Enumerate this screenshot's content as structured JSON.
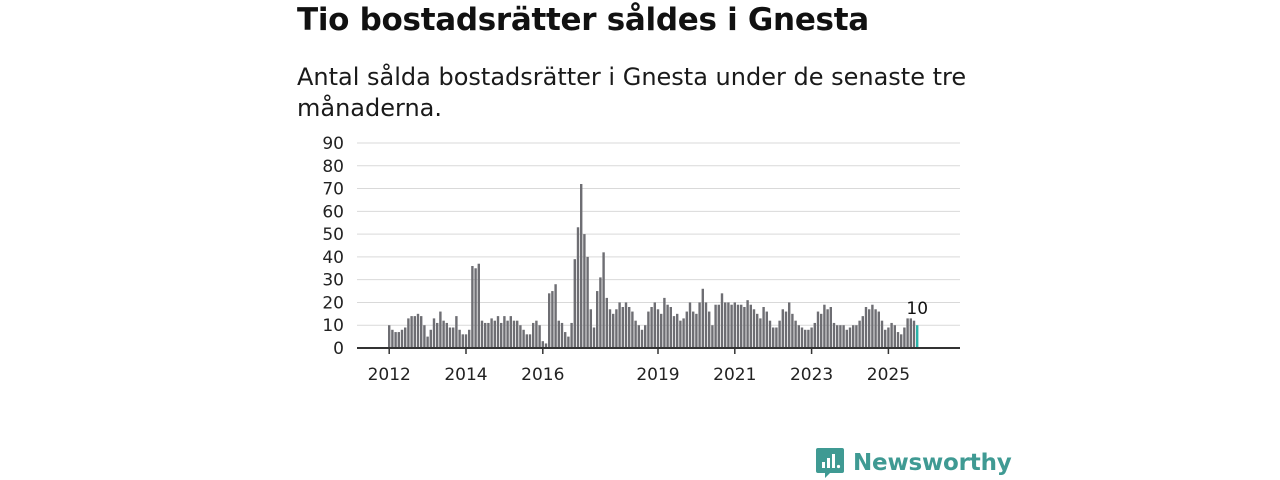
{
  "title": "Tio bostadsrätter såldes i Gnesta",
  "subtitle": "Antal sålda bostadsrätter i Gnesta under de senaste tre månaderna.",
  "logo": {
    "text": "Newsworthy",
    "color": "#3f9a93"
  },
  "chart_data": {
    "type": "bar",
    "title": "Tio bostadsrätter såldes i Gnesta",
    "ylabel": "",
    "xlabel": "",
    "ylim": [
      0,
      90
    ],
    "yticks": [
      0,
      10,
      20,
      30,
      40,
      50,
      60,
      70,
      80,
      90
    ],
    "x_tick_labels": [
      {
        "label": "2012",
        "index": 0
      },
      {
        "label": "2014",
        "index": 24
      },
      {
        "label": "2016",
        "index": 48
      },
      {
        "label": "2019",
        "index": 84
      },
      {
        "label": "2021",
        "index": 108
      },
      {
        "label": "2023",
        "index": 132
      },
      {
        "label": "2025",
        "index": 156
      }
    ],
    "bar_color": "#6e6e73",
    "highlight_color": "#2bb3a8",
    "highlight_label": "10",
    "values": [
      10,
      8,
      7,
      7,
      8,
      9,
      13,
      14,
      14,
      15,
      14,
      10,
      5,
      8,
      13,
      11,
      16,
      12,
      11,
      9,
      9,
      14,
      8,
      6,
      6,
      8,
      36,
      35,
      37,
      12,
      11,
      11,
      13,
      12,
      14,
      11,
      14,
      12,
      14,
      12,
      12,
      10,
      8,
      6,
      6,
      11,
      12,
      10,
      3,
      2,
      24,
      25,
      28,
      12,
      11,
      7,
      5,
      11,
      39,
      53,
      72,
      50,
      40,
      17,
      9,
      25,
      31,
      42,
      22,
      17,
      15,
      17,
      20,
      18,
      20,
      18,
      16,
      12,
      10,
      8,
      10,
      16,
      18,
      20,
      17,
      15,
      22,
      19,
      18,
      14,
      15,
      12,
      13,
      16,
      20,
      16,
      15,
      20,
      26,
      20,
      16,
      10,
      19,
      19,
      24,
      20,
      20,
      19,
      20,
      19,
      19,
      18,
      21,
      19,
      17,
      15,
      13,
      18,
      16,
      12,
      9,
      9,
      12,
      17,
      16,
      20,
      15,
      12,
      10,
      9,
      8,
      8,
      9,
      11,
      16,
      15,
      19,
      17,
      18,
      11,
      10,
      10,
      10,
      8,
      9,
      10,
      10,
      12,
      14,
      18,
      17,
      19,
      17,
      16,
      12,
      8,
      9,
      11,
      10,
      7,
      6,
      9,
      13,
      13,
      12,
      10
    ]
  }
}
